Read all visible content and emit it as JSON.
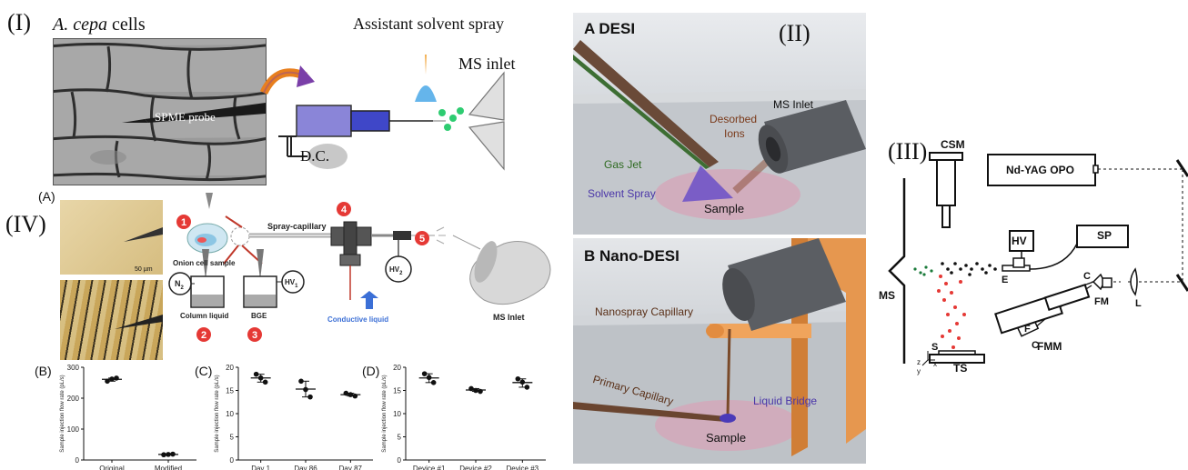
{
  "section_I": {
    "roman": "(I)",
    "cells_prefix": "A. cepa",
    "cells_suffix": " cells",
    "probe": "SPME probe",
    "dc": "D.C.",
    "assist": "Assistant solvent spray",
    "msinlet": "MS inlet"
  },
  "section_II": {
    "roman": "(II)",
    "a_title": "A  DESI",
    "a_labels": {
      "ms_inlet": "MS Inlet",
      "desorbed": "Desorbed",
      "ions": "Ions",
      "gas_jet": "Gas Jet",
      "solvent_spray": "Solvent Spray",
      "sample": "Sample"
    },
    "b_title": "B  Nano-DESI",
    "b_labels": {
      "nanospray": "Nanospray Capillary",
      "primary": "Primary Capillary",
      "liquid_bridge": "Liquid Bridge",
      "sample": "Sample"
    }
  },
  "section_III": {
    "roman": "(III)",
    "csm": "CSM",
    "laser": "Nd-YAG OPO",
    "hv": "HV",
    "sp": "SP",
    "ms": "MS",
    "e": "E",
    "c1": "C",
    "fm": "FM",
    "l": "L",
    "f": "F",
    "c2": "C",
    "fmm": "FMM",
    "s": "S",
    "ts": "TS",
    "axis_x": "x",
    "axis_y": "y",
    "axis_z": "z"
  },
  "section_IV": {
    "roman": "(IV)",
    "a": "(A)",
    "scale": "50 µm",
    "spray_capillary": "Spray-capillary",
    "onion_sample": "Onion cell sample",
    "n2": "N",
    "n2_sub": "2",
    "column_liquid": "Column liquid",
    "bge": "BGE",
    "hv1": "HV",
    "hv1_sub": "1",
    "hv2": "HV",
    "hv2_sub": "2",
    "conductive": "Conductive liquid",
    "ms_inlet": "MS Inlet",
    "nums": [
      "1",
      "2",
      "3",
      "4",
      "5"
    ]
  },
  "chart_data": [
    {
      "type": "scatter",
      "panel": "(B)",
      "categories": [
        "Original",
        "Modified"
      ],
      "points": [
        [
          255,
          262,
          265
        ],
        [
          17,
          18,
          19
        ]
      ],
      "means": [
        261,
        18
      ],
      "ylabel": "Sample injection flow rate (pL/s)",
      "ylim": [
        0,
        300
      ],
      "yticks": [
        "0",
        "100",
        "200",
        "300"
      ]
    },
    {
      "type": "scatter",
      "panel": "(C)",
      "categories": [
        "Day 1",
        "Day 86",
        "Day 87"
      ],
      "points": [
        [
          18.5,
          17.7,
          16.8
        ],
        [
          17.0,
          15.2,
          13.6
        ],
        [
          14.4,
          14.1,
          13.8
        ]
      ],
      "means": [
        17.7,
        15.3,
        14.1
      ],
      "ylabel": "Sample injection flow rate (pL/s)",
      "ylim": [
        0,
        20
      ],
      "yticks": [
        "0",
        "5",
        "10",
        "15",
        "20"
      ]
    },
    {
      "type": "scatter",
      "panel": "(D)",
      "categories": [
        "Device #1",
        "Device #2",
        "Device #3"
      ],
      "points": [
        [
          18.6,
          17.8,
          16.7
        ],
        [
          15.4,
          15.0,
          14.8
        ],
        [
          17.5,
          16.8,
          15.7
        ]
      ],
      "means": [
        17.7,
        15.1,
        16.7
      ],
      "ylabel": "Sample injection flow rate (pL/s)",
      "ylim": [
        0,
        20
      ],
      "yticks": [
        "0",
        "5",
        "10",
        "15",
        "20"
      ]
    }
  ]
}
